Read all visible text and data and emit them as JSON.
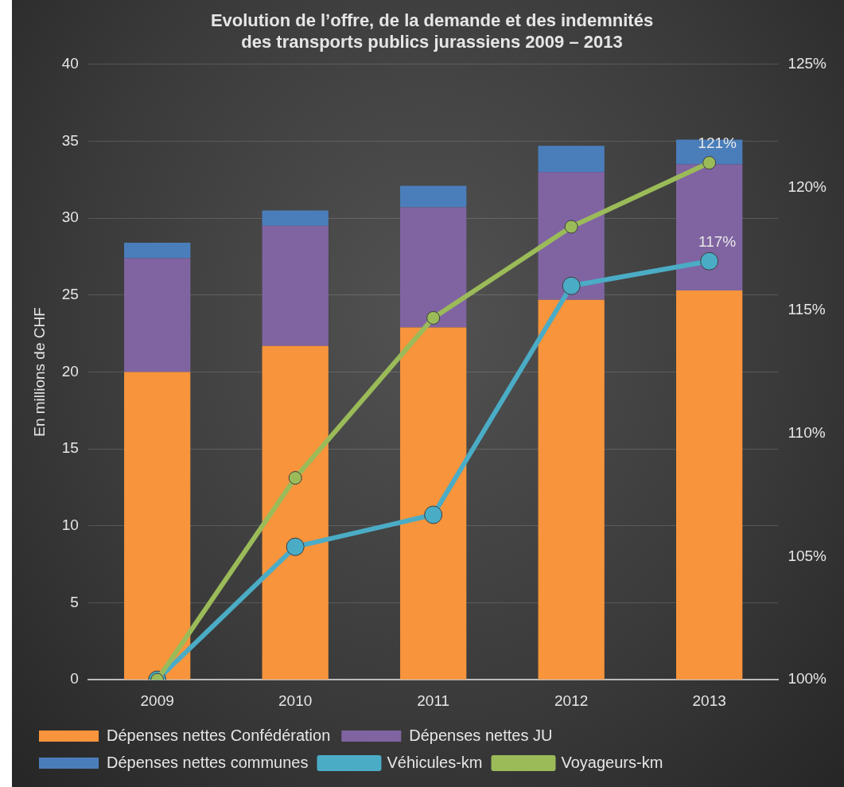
{
  "chart_data": {
    "type": "bar",
    "title": "Evolution de l’offre, de la demande et des indemnités\ndes transports publics jurassiens 2009 – 2013",
    "ylabel": "En millions de CHF",
    "categories": [
      "2009",
      "2010",
      "2011",
      "2012",
      "2013"
    ],
    "stacked": true,
    "series": [
      {
        "name": "Dépenses nettes Confédération",
        "color": "#f7943c",
        "values": [
          20.0,
          21.7,
          22.9,
          24.7,
          25.3
        ]
      },
      {
        "name": "Dépenses nettes JU",
        "color": "#8064a2",
        "values": [
          7.4,
          7.8,
          7.8,
          8.3,
          8.2
        ]
      },
      {
        "name": "Dépenses nettes communes",
        "color": "#4a7ebb",
        "values": [
          1.0,
          1.0,
          1.4,
          1.7,
          1.6
        ]
      },
      {
        "name": "Véhicules-km",
        "type": "line",
        "axis": "y2",
        "color": "#4bacc6",
        "values": [
          100,
          105.4,
          106.7,
          116.0,
          117.0
        ],
        "value_labels": [
          null,
          null,
          null,
          null,
          "117%"
        ]
      },
      {
        "name": "Voyageurs-km",
        "type": "line",
        "axis": "y2",
        "color": "#9bbb59",
        "values": [
          100,
          108.2,
          114.7,
          118.4,
          121.0
        ],
        "value_labels": [
          null,
          null,
          null,
          null,
          "121%"
        ]
      }
    ],
    "ylim": [
      0,
      40
    ],
    "yticks": [
      0,
      5,
      10,
      15,
      20,
      25,
      30,
      35,
      40
    ],
    "y2lim": [
      100,
      125
    ],
    "y2ticks": [
      {
        "value": 100,
        "label": "100%"
      },
      {
        "value": 105,
        "label": "105%"
      },
      {
        "value": 110,
        "label": "110%"
      },
      {
        "value": 115,
        "label": "115%"
      },
      {
        "value": 120,
        "label": "120%"
      },
      {
        "value": 125,
        "label": "125%"
      }
    ],
    "grid": "y",
    "legend": "bottom",
    "marker": "circle",
    "line_style": "solid"
  }
}
